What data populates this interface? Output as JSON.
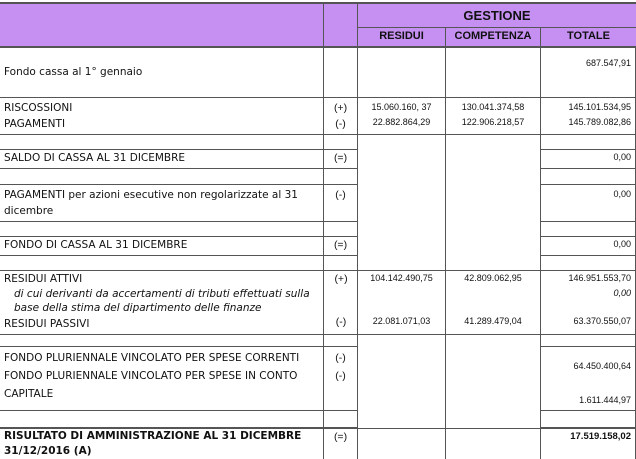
{
  "header": {
    "group": "GESTIONE",
    "columns": [
      "RESIDUI",
      "COMPETENZA",
      "TOTALE"
    ]
  },
  "rows": {
    "fondo_cassa_inizio": {
      "label": "Fondo cassa al 1° gennaio",
      "totale": "687.547,91"
    },
    "riscossioni": {
      "label": "RISCOSSIONI",
      "sign": "(+)",
      "residui": "15.060.160, 37",
      "competenza": "130.041.374,58",
      "totale": "145.101.534,95"
    },
    "pagamenti": {
      "label": "PAGAMENTI",
      "sign": "(-)",
      "residui": "22.882.864,29",
      "competenza": "122.906.218,57",
      "totale": "145.789.082,86"
    },
    "saldo_cassa": {
      "label": "SALDO DI CASSA AL 31 DICEMBRE",
      "sign": "(=)",
      "totale": "0,00"
    },
    "pagamenti_azioni": {
      "label": "PAGAMENTI per azioni esecutive non regolarizzate al 31 dicembre",
      "sign": "(-)",
      "totale": "0,00"
    },
    "fondo_cassa_fine": {
      "label": "FONDO DI CASSA AL 31 DICEMBRE",
      "sign": "(=)",
      "totale": "0,00"
    },
    "residui_attivi": {
      "label": "RESIDUI ATTIVI",
      "sign": "(+)",
      "residui": "104.142.490,75",
      "competenza": "42.809.062,95",
      "totale": "146.951.553,70"
    },
    "di_cui": {
      "label": "di cui derivanti da accertamenti di tributi effettuati sulla base della stima del dipartimento delle finanze",
      "totale": "0,00"
    },
    "residui_passivi": {
      "label": "RESIDUI PASSIVI",
      "sign": "(-)",
      "residui": "22.081.071,03",
      "competenza": "41.289.479,04",
      "totale": "63.370.550,07"
    },
    "fpv_correnti": {
      "label": "FONDO PLURIENNALE VINCOLATO PER SPESE CORRENTI",
      "sign": "(-)",
      "totale": "64.450.400,64"
    },
    "fpv_capitale": {
      "label": "FONDO PLURIENNALE VINCOLATO PER SPESE IN CONTO CAPITALE",
      "sign": "(-)",
      "totale": "1.611.444,97"
    },
    "risultato": {
      "label": "RISULTATO DI AMMINISTRAZIONE AL 31 DICEMBRE 31/12/2016 (A)",
      "sign": "(=)",
      "totale": "17.519.158,02"
    }
  },
  "colors": {
    "header_bg": "#c690f2"
  }
}
